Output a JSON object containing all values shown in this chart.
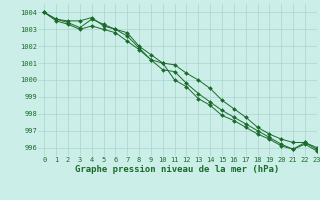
{
  "xlabel": "Graphe pression niveau de la mer (hPa)",
  "xlim": [
    -0.5,
    23
  ],
  "ylim": [
    995.5,
    1004.5
  ],
  "yticks": [
    996,
    997,
    998,
    999,
    1000,
    1001,
    1002,
    1003,
    1004
  ],
  "xticks": [
    0,
    1,
    2,
    3,
    4,
    5,
    6,
    7,
    8,
    9,
    10,
    11,
    12,
    13,
    14,
    15,
    16,
    17,
    18,
    19,
    20,
    21,
    22,
    23
  ],
  "background_color": "#cceee8",
  "grid_color": "#aad4cc",
  "line_color": "#1a6b2a",
  "line1": [
    1004.0,
    1003.6,
    1003.5,
    1003.5,
    1003.7,
    1003.2,
    1003.0,
    1002.8,
    1002.0,
    1001.5,
    1001.0,
    1000.9,
    1000.4,
    1000.0,
    999.5,
    998.8,
    998.3,
    997.8,
    997.2,
    996.8,
    996.5,
    996.3,
    996.3,
    995.9
  ],
  "line2": [
    1004.0,
    1003.6,
    1003.4,
    1003.1,
    1003.6,
    1003.3,
    1003.0,
    1002.6,
    1001.9,
    1001.2,
    1001.0,
    1000.0,
    999.6,
    998.9,
    998.5,
    997.9,
    997.6,
    997.2,
    996.8,
    996.5,
    996.1,
    995.9,
    996.2,
    995.8
  ],
  "line3": [
    1004.0,
    1003.5,
    1003.3,
    1003.0,
    1003.2,
    1003.0,
    1002.8,
    1002.3,
    1001.8,
    1001.2,
    1000.6,
    1000.5,
    999.8,
    999.2,
    998.7,
    998.2,
    997.8,
    997.4,
    997.0,
    996.6,
    996.2,
    995.9,
    996.3,
    996.0
  ],
  "tick_fontsize": 5.0,
  "xlabel_fontsize": 6.5,
  "marker": "D",
  "marker_size": 2.0,
  "linewidth": 0.7
}
